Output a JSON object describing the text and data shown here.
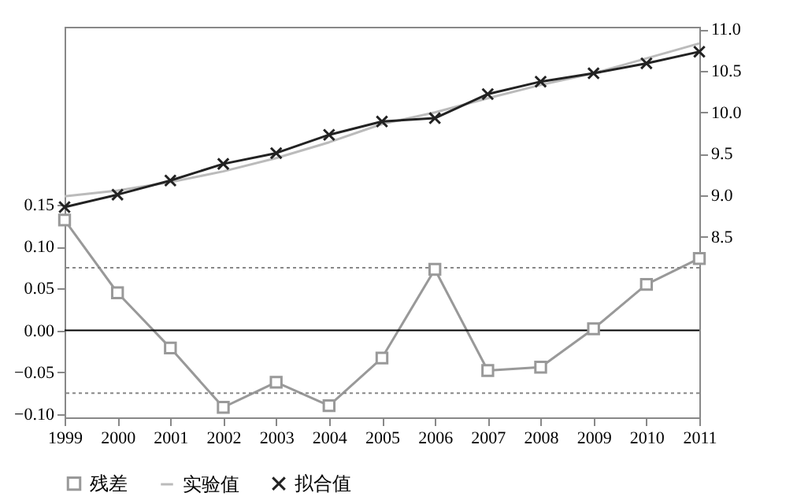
{
  "chart_data": {
    "type": "line",
    "categories": [
      "1999",
      "2000",
      "2001",
      "2002",
      "2003",
      "2004",
      "2005",
      "2006",
      "2007",
      "2008",
      "2009",
      "2010",
      "2011"
    ],
    "series": [
      {
        "name": "残差",
        "color": "#999999",
        "marker": "square",
        "values": [
          0.132,
          0.045,
          -0.021,
          -0.092,
          -0.062,
          -0.09,
          -0.033,
          0.073,
          -0.048,
          -0.044,
          0.002,
          0.055,
          0.086
        ]
      },
      {
        "name": "实验值",
        "color": "#bbbbbb",
        "marker": "none",
        "axis": "y2",
        "values": [
          8.99,
          9.06,
          9.16,
          9.29,
          9.45,
          9.64,
          9.86,
          10.0,
          10.17,
          10.33,
          10.47,
          10.65,
          10.83
        ]
      },
      {
        "name": "拟合值",
        "color": "#222222",
        "marker": "cross",
        "axis": "y2",
        "values": [
          8.86,
          9.01,
          9.18,
          9.38,
          9.51,
          9.73,
          9.89,
          9.93,
          10.22,
          10.37,
          10.47,
          10.59,
          10.73
        ]
      }
    ],
    "ylim": [
      -0.104,
      0.363
    ],
    "yticks": [
      {
        "value": -0.1,
        "label": "−0.10"
      },
      {
        "value": -0.05,
        "label": "−0.05"
      },
      {
        "value": 0,
        "label": "0.00"
      },
      {
        "value": 0.05,
        "label": "0.05"
      },
      {
        "value": 0.1,
        "label": "0.10"
      },
      {
        "value": 0.15,
        "label": "0.15"
      }
    ],
    "y2lim": [
      6.33,
      11.03
    ],
    "y2ticks": [
      {
        "value": 8.5,
        "label": "8.5"
      },
      {
        "value": 9,
        "label": "9.0"
      },
      {
        "value": 9.5,
        "label": "9.5"
      },
      {
        "value": 10,
        "label": "10.0"
      },
      {
        "value": 10.5,
        "label": "10.5"
      },
      {
        "value": 11,
        "label": "11.0"
      }
    ],
    "ref_lines": [
      {
        "axis": "y",
        "value": 0.075,
        "color": "#888888",
        "line_style": "dotted"
      },
      {
        "axis": "y",
        "value": 0,
        "color": "#000000",
        "line_style": "solid"
      },
      {
        "axis": "y",
        "value": -0.075,
        "color": "#888888",
        "line_style": "dotted"
      }
    ],
    "grid": false,
    "legend": "bottom"
  }
}
